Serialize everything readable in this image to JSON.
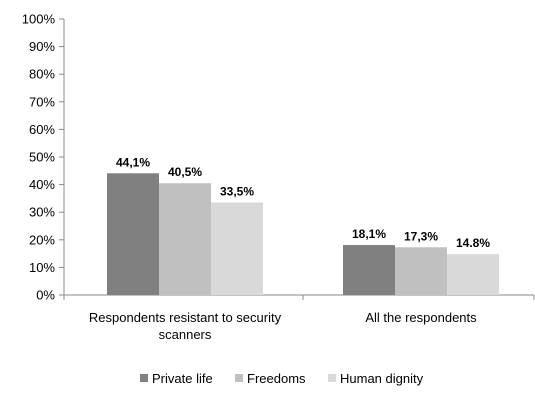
{
  "chart_data": {
    "type": "bar",
    "categories": [
      [
        "Respondents resistant to security",
        "scanners"
      ],
      [
        "All the respondents"
      ]
    ],
    "series": [
      {
        "name": "Private life",
        "values": [
          44.1,
          18.1
        ],
        "labels": [
          "44,1%",
          "18,1%"
        ],
        "color": "#808080"
      },
      {
        "name": "Freedoms",
        "values": [
          40.5,
          17.3
        ],
        "labels": [
          "40,5%",
          "17,3%"
        ],
        "color": "#c0c0c0"
      },
      {
        "name": "Human dignity",
        "values": [
          33.5,
          14.8
        ],
        "labels": [
          "33,5%",
          "14.8%"
        ],
        "color": "#d9d9d9"
      }
    ],
    "ylim": [
      0,
      100
    ],
    "yticks": [
      "0%",
      "10%",
      "20%",
      "30%",
      "40%",
      "50%",
      "60%",
      "70%",
      "80%",
      "90%",
      "100%"
    ],
    "legend_position": "bottom",
    "grid": false,
    "title": "",
    "xlabel": "",
    "ylabel": ""
  }
}
